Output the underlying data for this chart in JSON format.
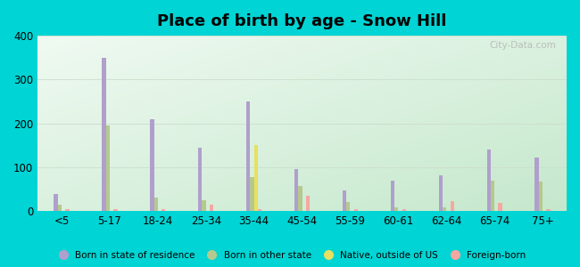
{
  "title": "Place of birth by age - Snow Hill",
  "categories": [
    "<5",
    "5-17",
    "18-24",
    "25-34",
    "35-44",
    "45-54",
    "55-59",
    "60-61",
    "62-64",
    "65-74",
    "75+"
  ],
  "series": {
    "Born in state of residence": [
      38,
      350,
      210,
      145,
      250,
      95,
      47,
      70,
      82,
      140,
      122
    ],
    "Born in other state": [
      15,
      195,
      30,
      25,
      78,
      58,
      20,
      8,
      8,
      70,
      68
    ],
    "Native, outside of US": [
      0,
      0,
      0,
      0,
      150,
      0,
      0,
      0,
      0,
      0,
      0
    ],
    "Foreign-born": [
      5,
      5,
      5,
      15,
      5,
      35,
      5,
      5,
      22,
      18,
      5
    ]
  },
  "colors": {
    "Born in state of residence": "#b09fcc",
    "Born in other state": "#b5c98e",
    "Native, outside of US": "#e8e060",
    "Foreign-born": "#f4a8a0"
  },
  "ylim": [
    0,
    400
  ],
  "yticks": [
    0,
    100,
    200,
    300,
    400
  ],
  "bg_topleft": "#e8f8ee",
  "bg_bottomright": "#c8e8c8",
  "outer_bg": "#00d4d4",
  "bar_width": 0.08,
  "watermark": "City-Data.com"
}
